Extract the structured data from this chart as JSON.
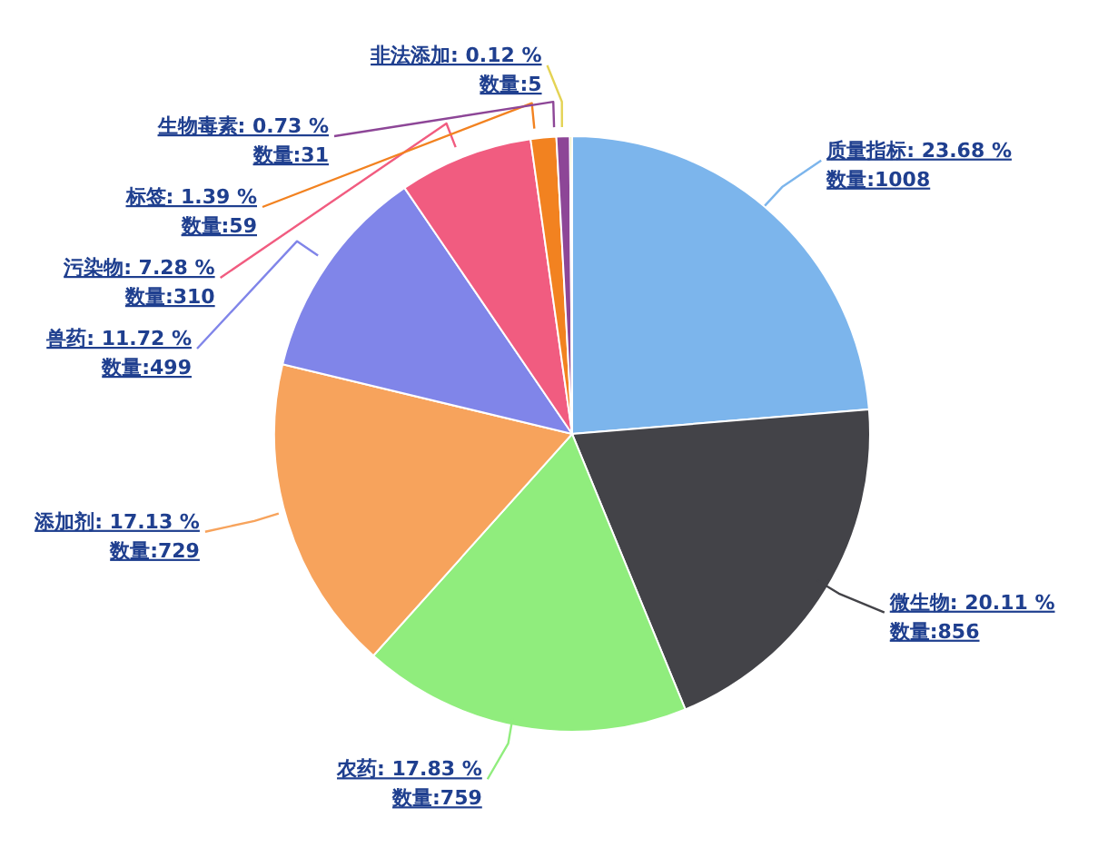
{
  "chart_data": {
    "type": "pie",
    "categories": [
      "质量指标",
      "微生物",
      "农药",
      "添加剂",
      "兽药",
      "污染物",
      "标签",
      "生物毒素",
      "非法添加"
    ],
    "values": [
      1008,
      856,
      759,
      729,
      499,
      310,
      59,
      31,
      5
    ],
    "colors": [
      "#7cb5ec",
      "#434348",
      "#90ed7d",
      "#f7a35c",
      "#8085e9",
      "#f15c80",
      "#f28220",
      "#8d4697",
      "#e4d354"
    ],
    "value_labels": [
      "23.68 %\n数量:1008",
      "20.11 %\n数量:856",
      "17.83 %\n数量:759",
      "17.13 %\n数量:729",
      "11.72 %\n数量:499",
      "7.28 %\n数量:310",
      "1.39 %\n数量:59",
      "0.73 %\n数量:31",
      "0.12 %\n数量:5"
    ],
    "legend": false
  }
}
